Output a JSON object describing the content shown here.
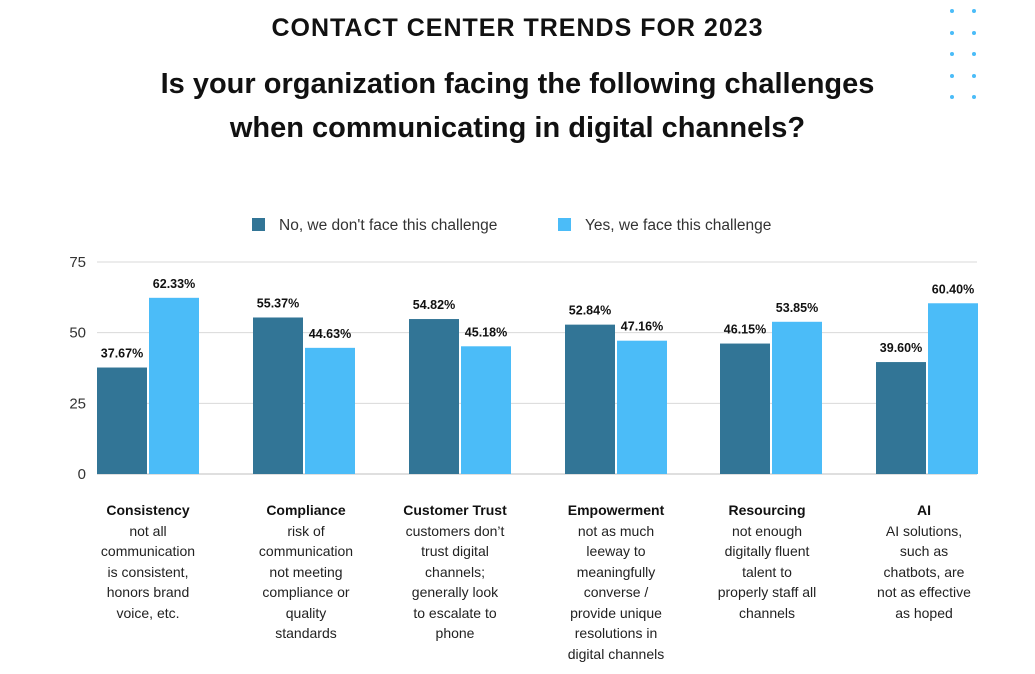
{
  "kicker": "CONTACT CENTER TRENDS FOR 2023",
  "title_lines": [
    "Is your organization facing the following challenges",
    "when communicating in digital channels?"
  ],
  "colors": {
    "no": "#327596",
    "yes": "#4bbcf8",
    "grid": "#d9d9d9",
    "dots": "#4bbcf8"
  },
  "chart_data": {
    "type": "bar",
    "title": "Is your organization facing the following challenges when communicating in digital channels?",
    "categories": [
      "Consistency",
      "Compliance",
      "Customer Trust",
      "Empowerment",
      "Resourcing",
      "AI"
    ],
    "descriptions": [
      [
        "not all",
        "communication",
        "is consistent,",
        "honors brand",
        "voice, etc."
      ],
      [
        "risk of",
        "communication",
        "not meeting",
        "compliance or",
        "quality",
        "standards"
      ],
      [
        "customers don’t",
        "trust digital",
        "channels;",
        "generally look",
        "to escalate to",
        "phone"
      ],
      [
        "not as much",
        "leeway to",
        "meaningfully",
        "converse /",
        "provide unique",
        "resolutions in",
        "digital channels"
      ],
      [
        "not enough",
        "digitally fluent",
        "talent to",
        "properly staff all",
        "channels"
      ],
      [
        "AI solutions,",
        "such as",
        "chatbots, are",
        "not as effective",
        "as hoped"
      ]
    ],
    "series": [
      {
        "name": "No, we don't face this challenge",
        "values": [
          37.67,
          55.37,
          54.82,
          52.84,
          46.15,
          39.6
        ],
        "labels": [
          "37.67%",
          "55.37%",
          "54.82%",
          "52.84%",
          "46.15%",
          "39.60%"
        ]
      },
      {
        "name": "Yes, we face this challenge",
        "values": [
          62.33,
          44.63,
          45.18,
          47.16,
          53.85,
          60.4
        ],
        "labels": [
          "62.33%",
          "44.63%",
          "45.18%",
          "47.16%",
          "53.85%",
          "60.40%"
        ]
      }
    ],
    "ylim": [
      0,
      75
    ],
    "yticks": [
      0,
      25,
      50,
      75
    ],
    "ytick_labels": [
      "0",
      "25",
      "50",
      "75"
    ],
    "xlabel": "",
    "ylabel": "",
    "grid": true,
    "legend": "top-center"
  }
}
